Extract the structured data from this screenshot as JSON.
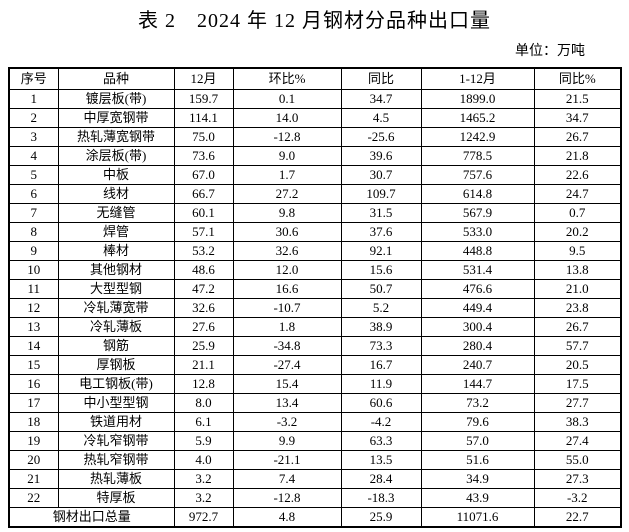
{
  "page": {
    "title": "表 2　2024 年 12 月钢材分品种出口量",
    "unit_label": "单位：万吨"
  },
  "table": {
    "headers": [
      "序号",
      "品种",
      "12月",
      "环比%",
      "同比",
      "1-12月",
      "同比%"
    ],
    "rows": [
      {
        "seq": "1",
        "name": "镀层板(带)",
        "dec": "159.7",
        "mom": "0.1",
        "yoy": "34.7",
        "cum": "1899.0",
        "cum_yoy": "21.5"
      },
      {
        "seq": "2",
        "name": "中厚宽钢带",
        "dec": "114.1",
        "mom": "14.0",
        "yoy": "4.5",
        "cum": "1465.2",
        "cum_yoy": "34.7"
      },
      {
        "seq": "3",
        "name": "热轧薄宽钢带",
        "dec": "75.0",
        "mom": "-12.8",
        "yoy": "-25.6",
        "cum": "1242.9",
        "cum_yoy": "26.7"
      },
      {
        "seq": "4",
        "name": "涂层板(带)",
        "dec": "73.6",
        "mom": "9.0",
        "yoy": "39.6",
        "cum": "778.5",
        "cum_yoy": "21.8"
      },
      {
        "seq": "5",
        "name": "中板",
        "dec": "67.0",
        "mom": "1.7",
        "yoy": "30.7",
        "cum": "757.6",
        "cum_yoy": "22.6"
      },
      {
        "seq": "6",
        "name": "线材",
        "dec": "66.7",
        "mom": "27.2",
        "yoy": "109.7",
        "cum": "614.8",
        "cum_yoy": "24.7"
      },
      {
        "seq": "7",
        "name": "无缝管",
        "dec": "60.1",
        "mom": "9.8",
        "yoy": "31.5",
        "cum": "567.9",
        "cum_yoy": "0.7"
      },
      {
        "seq": "8",
        "name": "焊管",
        "dec": "57.1",
        "mom": "30.6",
        "yoy": "37.6",
        "cum": "533.0",
        "cum_yoy": "20.2"
      },
      {
        "seq": "9",
        "name": "棒材",
        "dec": "53.2",
        "mom": "32.6",
        "yoy": "92.1",
        "cum": "448.8",
        "cum_yoy": "9.5"
      },
      {
        "seq": "10",
        "name": "其他钢材",
        "dec": "48.6",
        "mom": "12.0",
        "yoy": "15.6",
        "cum": "531.4",
        "cum_yoy": "13.8"
      },
      {
        "seq": "11",
        "name": "大型型钢",
        "dec": "47.2",
        "mom": "16.6",
        "yoy": "50.7",
        "cum": "476.6",
        "cum_yoy": "21.0"
      },
      {
        "seq": "12",
        "name": "冷轧薄宽带",
        "dec": "32.6",
        "mom": "-10.7",
        "yoy": "5.2",
        "cum": "449.4",
        "cum_yoy": "23.8"
      },
      {
        "seq": "13",
        "name": "冷轧薄板",
        "dec": "27.6",
        "mom": "1.8",
        "yoy": "38.9",
        "cum": "300.4",
        "cum_yoy": "26.7"
      },
      {
        "seq": "14",
        "name": "钢筋",
        "dec": "25.9",
        "mom": "-34.8",
        "yoy": "73.3",
        "cum": "280.4",
        "cum_yoy": "57.7"
      },
      {
        "seq": "15",
        "name": "厚钢板",
        "dec": "21.1",
        "mom": "-27.4",
        "yoy": "16.7",
        "cum": "240.7",
        "cum_yoy": "20.5"
      },
      {
        "seq": "16",
        "name": "电工钢板(带)",
        "dec": "12.8",
        "mom": "15.4",
        "yoy": "11.9",
        "cum": "144.7",
        "cum_yoy": "17.5"
      },
      {
        "seq": "17",
        "name": "中小型型钢",
        "dec": "8.0",
        "mom": "13.4",
        "yoy": "60.6",
        "cum": "73.2",
        "cum_yoy": "27.7"
      },
      {
        "seq": "18",
        "name": "铁道用材",
        "dec": "6.1",
        "mom": "-3.2",
        "yoy": "-4.2",
        "cum": "79.6",
        "cum_yoy": "38.3"
      },
      {
        "seq": "19",
        "name": "冷轧窄钢带",
        "dec": "5.9",
        "mom": "9.9",
        "yoy": "63.3",
        "cum": "57.0",
        "cum_yoy": "27.4"
      },
      {
        "seq": "20",
        "name": "热轧窄钢带",
        "dec": "4.0",
        "mom": "-21.1",
        "yoy": "13.5",
        "cum": "51.6",
        "cum_yoy": "55.0"
      },
      {
        "seq": "21",
        "name": "热轧薄板",
        "dec": "3.2",
        "mom": "7.4",
        "yoy": "28.4",
        "cum": "34.9",
        "cum_yoy": "27.3"
      },
      {
        "seq": "22",
        "name": "特厚板",
        "dec": "3.2",
        "mom": "-12.8",
        "yoy": "-18.3",
        "cum": "43.9",
        "cum_yoy": "-3.2"
      }
    ],
    "total": {
      "label": "钢材出口总量",
      "dec": "972.7",
      "mom": "4.8",
      "yoy": "25.9",
      "cum": "11071.6",
      "cum_yoy": "22.7"
    }
  }
}
